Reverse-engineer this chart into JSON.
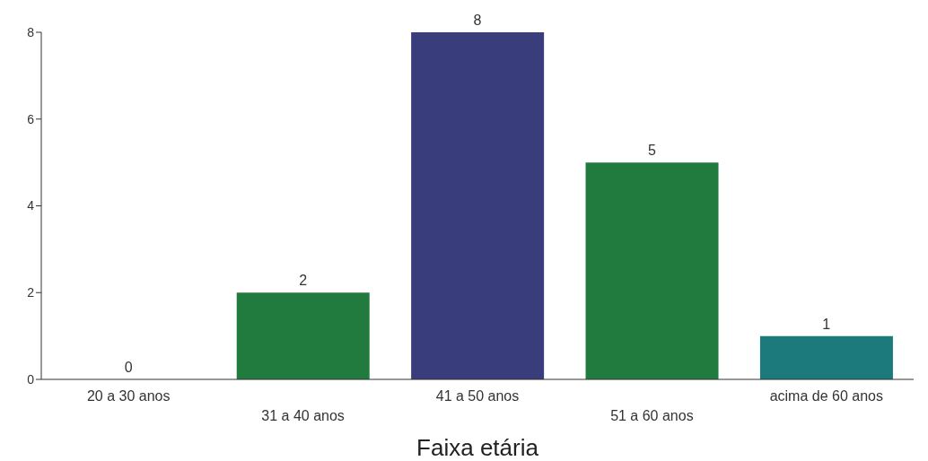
{
  "chart_data": {
    "type": "bar",
    "xlabel": "Faixa etária",
    "categories": [
      "20 a 30 anos",
      "31 a 40 anos",
      "41 a 50 anos",
      "51 a 60 anos",
      "acima de 60 anos"
    ],
    "values": [
      0,
      2,
      8,
      5,
      1
    ],
    "colors": [
      "#217a3e",
      "#217a3e",
      "#3a3d7c",
      "#217a3e",
      "#1c7a7c"
    ],
    "ylim": [
      0,
      8
    ],
    "yticks": [
      0,
      2,
      4,
      6,
      8
    ],
    "grid": false,
    "data_labels": true
  }
}
